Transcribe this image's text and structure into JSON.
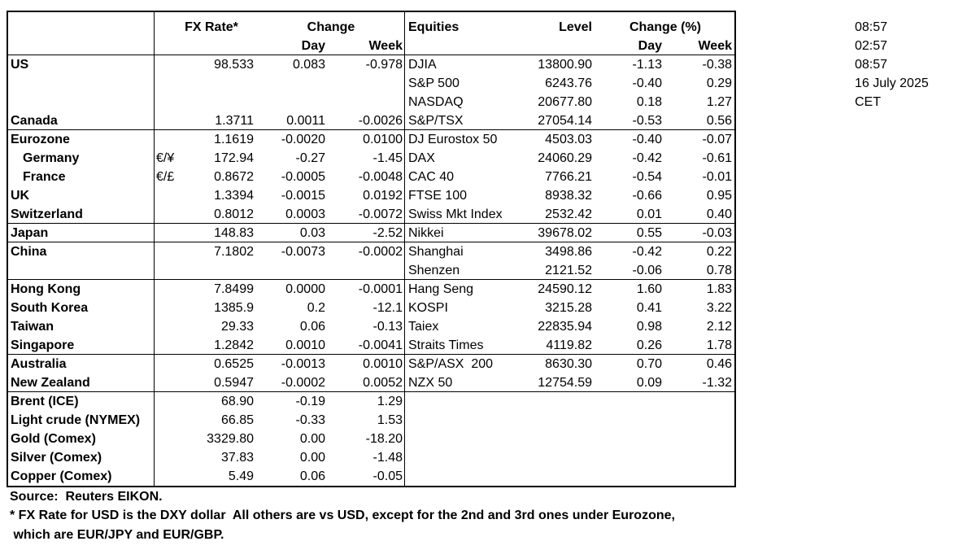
{
  "header": {
    "fx_rate": "FX Rate*",
    "change": "Change",
    "day": "Day",
    "week": "Week",
    "equities": "Equities",
    "level": "Level",
    "change_pct": "Change (%)",
    "eq_day": "Day",
    "eq_week": "Week"
  },
  "table": {
    "groups": [
      [
        {
          "name": "US",
          "fx": "98.533",
          "fx_day": "0.083",
          "fx_week": "-0.978",
          "equity": "DJIA",
          "level": "13800.90",
          "eq_day": "-1.13",
          "eq_week": "-0.38"
        },
        {
          "equity": "S&P 500",
          "level": "6243.76",
          "eq_day": "-0.40",
          "eq_week": "0.29"
        },
        {
          "equity": "NASDAQ",
          "level": "20677.80",
          "eq_day": "0.18",
          "eq_week": "1.27"
        },
        {
          "name": "Canada",
          "fx": "1.3711",
          "fx_day": "0.0011",
          "fx_week": "-0.0026",
          "equity": "S&P/TSX",
          "level": "27054.14",
          "eq_day": "-0.53",
          "eq_week": "0.56"
        }
      ],
      [
        {
          "name": "Eurozone",
          "fx": "1.1619",
          "fx_day": "-0.0020",
          "fx_week": "0.0100",
          "equity": "DJ Eurostox 50",
          "level": "4503.03",
          "eq_day": "-0.40",
          "eq_week": "-0.07"
        },
        {
          "name": "Germany",
          "unit": "€/¥",
          "fx": "172.94",
          "fx_day": "-0.27",
          "fx_week": "-1.45",
          "equity": "DAX",
          "level": "24060.29",
          "eq_day": "-0.42",
          "eq_week": "-0.61"
        },
        {
          "name": "France",
          "unit": "€/£",
          "fx": "0.8672",
          "fx_day": "-0.0005",
          "fx_week": "-0.0048",
          "equity": "CAC 40",
          "level": "7766.21",
          "eq_day": "-0.54",
          "eq_week": "-0.01"
        },
        {
          "name": "UK",
          "fx": "1.3394",
          "fx_day": "-0.0015",
          "fx_week": "0.0192",
          "equity": "FTSE 100",
          "level": "8938.32",
          "eq_day": "-0.66",
          "eq_week": "0.95"
        },
        {
          "name": "Switzerland",
          "fx": "0.8012",
          "fx_day": "0.0003",
          "fx_week": "-0.0072",
          "equity": "Swiss Mkt Index",
          "level": "2532.42",
          "eq_day": "0.01",
          "eq_week": "0.40"
        }
      ],
      [
        {
          "name": "Japan",
          "fx": "148.83",
          "fx_day": "0.03",
          "fx_week": "-2.52",
          "equity": "Nikkei",
          "level": "39678.02",
          "eq_day": "0.55",
          "eq_week": "-0.03"
        }
      ],
      [
        {
          "name": "China",
          "fx": "7.1802",
          "fx_day": "-0.0073",
          "fx_week": "-0.0002",
          "equity": "Shanghai",
          "level": "3498.86",
          "eq_day": "-0.42",
          "eq_week": "0.22"
        },
        {
          "equity": "Shenzen",
          "level": "2121.52",
          "eq_day": "-0.06",
          "eq_week": "0.78"
        }
      ],
      [
        {
          "name": "Hong Kong",
          "fx": "7.8499",
          "fx_day": "0.0000",
          "fx_week": "-0.0001",
          "equity": "Hang Seng",
          "level": "24590.12",
          "eq_day": "1.60",
          "eq_week": "1.83"
        },
        {
          "name": "South Korea",
          "fx": "1385.9",
          "fx_day": "0.2",
          "fx_week": "-12.1",
          "equity": "KOSPI",
          "level": "3215.28",
          "eq_day": "0.41",
          "eq_week": "3.22"
        },
        {
          "name": "Taiwan",
          "fx": "29.33",
          "fx_day": "0.06",
          "fx_week": "-0.13",
          "equity": "Taiex",
          "level": "22835.94",
          "eq_day": "0.98",
          "eq_week": "2.12"
        },
        {
          "name": "Singapore",
          "fx": "1.2842",
          "fx_day": "0.0010",
          "fx_week": "-0.0041",
          "equity": "Straits Times",
          "level": "4119.82",
          "eq_day": "0.26",
          "eq_week": "1.78"
        }
      ],
      [
        {
          "name": "Australia",
          "fx": "0.6525",
          "fx_day": "-0.0013",
          "fx_week": "0.0010",
          "equity": "S&P/ASX  200",
          "level": "8630.30",
          "eq_day": "0.70",
          "eq_week": "0.46"
        },
        {
          "name": "New Zealand",
          "fx": "0.5947",
          "fx_day": "-0.0002",
          "fx_week": "0.0052",
          "equity": "NZX 50",
          "level": "12754.59",
          "eq_day": "0.09",
          "eq_week": "-1.32"
        }
      ],
      [
        {
          "name": "Brent (ICE)",
          "fx": "68.90",
          "fx_day": "-0.19",
          "fx_week": "1.29"
        },
        {
          "name": "Light crude (NYMEX)",
          "fx": "66.85",
          "fx_day": "-0.33",
          "fx_week": "1.53"
        },
        {
          "name": "Gold (Comex)",
          "fx": "3329.80",
          "fx_day": "0.00",
          "fx_week": "-18.20"
        },
        {
          "name": "Silver (Comex)",
          "fx": "37.83",
          "fx_day": "0.00",
          "fx_week": "-1.48"
        },
        {
          "name": "Copper (Comex)",
          "fx": "5.49",
          "fx_day": "0.06",
          "fx_week": "-0.05"
        }
      ]
    ]
  },
  "times": [
    "08:57",
    "02:57",
    "08:57",
    "16 July 2025",
    "CET"
  ],
  "footer": {
    "source": "Source:  Reuters EIKON.",
    "note_1": "* FX Rate for USD is the DXY dollar  All others are vs USD, except for the 2nd and 3rd ones under Eurozone,",
    "note_2": " which are EUR/JPY and EUR/GBP."
  }
}
